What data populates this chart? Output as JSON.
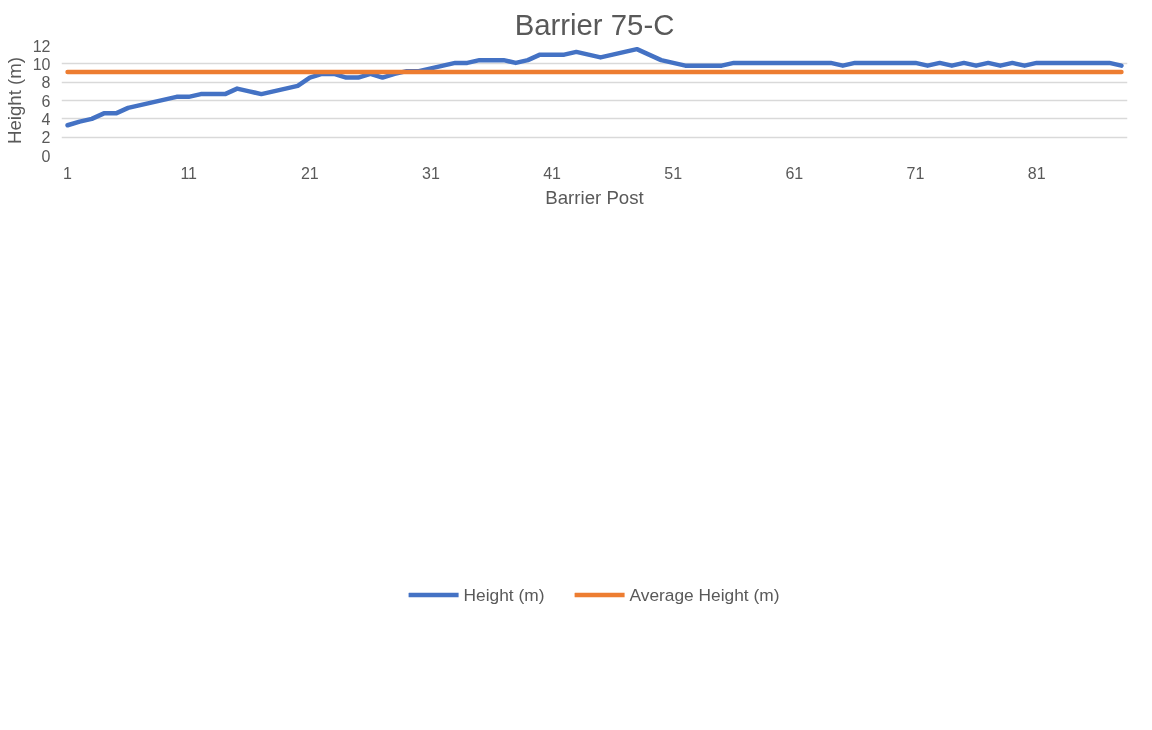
{
  "chart_data": {
    "type": "line",
    "title": "Barrier 75-C",
    "xlabel": "Barrier Post",
    "ylabel": "Height (m)",
    "x": [
      1,
      2,
      3,
      4,
      5,
      6,
      7,
      8,
      9,
      10,
      11,
      12,
      13,
      14,
      15,
      16,
      17,
      18,
      19,
      20,
      21,
      22,
      23,
      24,
      25,
      26,
      27,
      28,
      29,
      30,
      31,
      32,
      33,
      34,
      35,
      36,
      37,
      38,
      39,
      40,
      41,
      42,
      43,
      44,
      45,
      46,
      47,
      48,
      49,
      50,
      51,
      52,
      53,
      54,
      55,
      56,
      57,
      58,
      59,
      60,
      61,
      62,
      63,
      64,
      65,
      66,
      67,
      68,
      69,
      70,
      71,
      72,
      73,
      74,
      75,
      76,
      77,
      78,
      79,
      80,
      81,
      82,
      83,
      84,
      85,
      86,
      87,
      88
    ],
    "series": [
      {
        "name": "Height (m)",
        "color": "#4472c4",
        "values": [
          3.3,
          3.7,
          4.0,
          4.6,
          4.6,
          5.2,
          5.5,
          5.8,
          6.1,
          6.4,
          6.4,
          6.7,
          6.7,
          6.7,
          7.3,
          7.0,
          6.7,
          7.0,
          7.3,
          7.6,
          8.5,
          8.9,
          8.9,
          8.5,
          8.5,
          8.9,
          8.5,
          8.9,
          9.2,
          9.2,
          9.5,
          9.8,
          10.1,
          10.1,
          10.4,
          10.4,
          10.4,
          10.1,
          10.4,
          11.0,
          11.0,
          11.0,
          11.3,
          11.0,
          10.7,
          11.0,
          11.3,
          11.6,
          11.0,
          10.4,
          10.1,
          9.8,
          9.8,
          9.8,
          9.8,
          10.1,
          10.1,
          10.1,
          10.1,
          10.1,
          10.1,
          10.1,
          10.1,
          10.1,
          9.8,
          10.1,
          10.1,
          10.1,
          10.1,
          10.1,
          10.1,
          9.8,
          10.1,
          9.8,
          10.1,
          9.8,
          10.1,
          9.8,
          10.1,
          9.8,
          10.1,
          10.1,
          10.1,
          10.1,
          10.1,
          10.1,
          10.1,
          9.8
        ]
      },
      {
        "name": "Average Height (m)",
        "color": "#ed7d31",
        "values": [
          9.1,
          9.1,
          9.1,
          9.1,
          9.1,
          9.1,
          9.1,
          9.1,
          9.1,
          9.1,
          9.1,
          9.1,
          9.1,
          9.1,
          9.1,
          9.1,
          9.1,
          9.1,
          9.1,
          9.1,
          9.1,
          9.1,
          9.1,
          9.1,
          9.1,
          9.1,
          9.1,
          9.1,
          9.1,
          9.1,
          9.1,
          9.1,
          9.1,
          9.1,
          9.1,
          9.1,
          9.1,
          9.1,
          9.1,
          9.1,
          9.1,
          9.1,
          9.1,
          9.1,
          9.1,
          9.1,
          9.1,
          9.1,
          9.1,
          9.1,
          9.1,
          9.1,
          9.1,
          9.1,
          9.1,
          9.1,
          9.1,
          9.1,
          9.1,
          9.1,
          9.1,
          9.1,
          9.1,
          9.1,
          9.1,
          9.1,
          9.1,
          9.1,
          9.1,
          9.1,
          9.1,
          9.1,
          9.1,
          9.1,
          9.1,
          9.1,
          9.1,
          9.1,
          9.1,
          9.1,
          9.1,
          9.1,
          9.1,
          9.1,
          9.1,
          9.1,
          9.1,
          9.1
        ]
      }
    ],
    "xlim": [
      0.5,
      88.5
    ],
    "xticks": [
      1,
      11,
      21,
      31,
      41,
      51,
      61,
      71,
      81
    ],
    "ylim": [
      0,
      12
    ],
    "yticks": [
      0,
      2,
      4,
      6,
      8,
      10,
      12
    ],
    "grid": "y",
    "legend": "bottom",
    "marker": "none",
    "line_style": "solid"
  }
}
